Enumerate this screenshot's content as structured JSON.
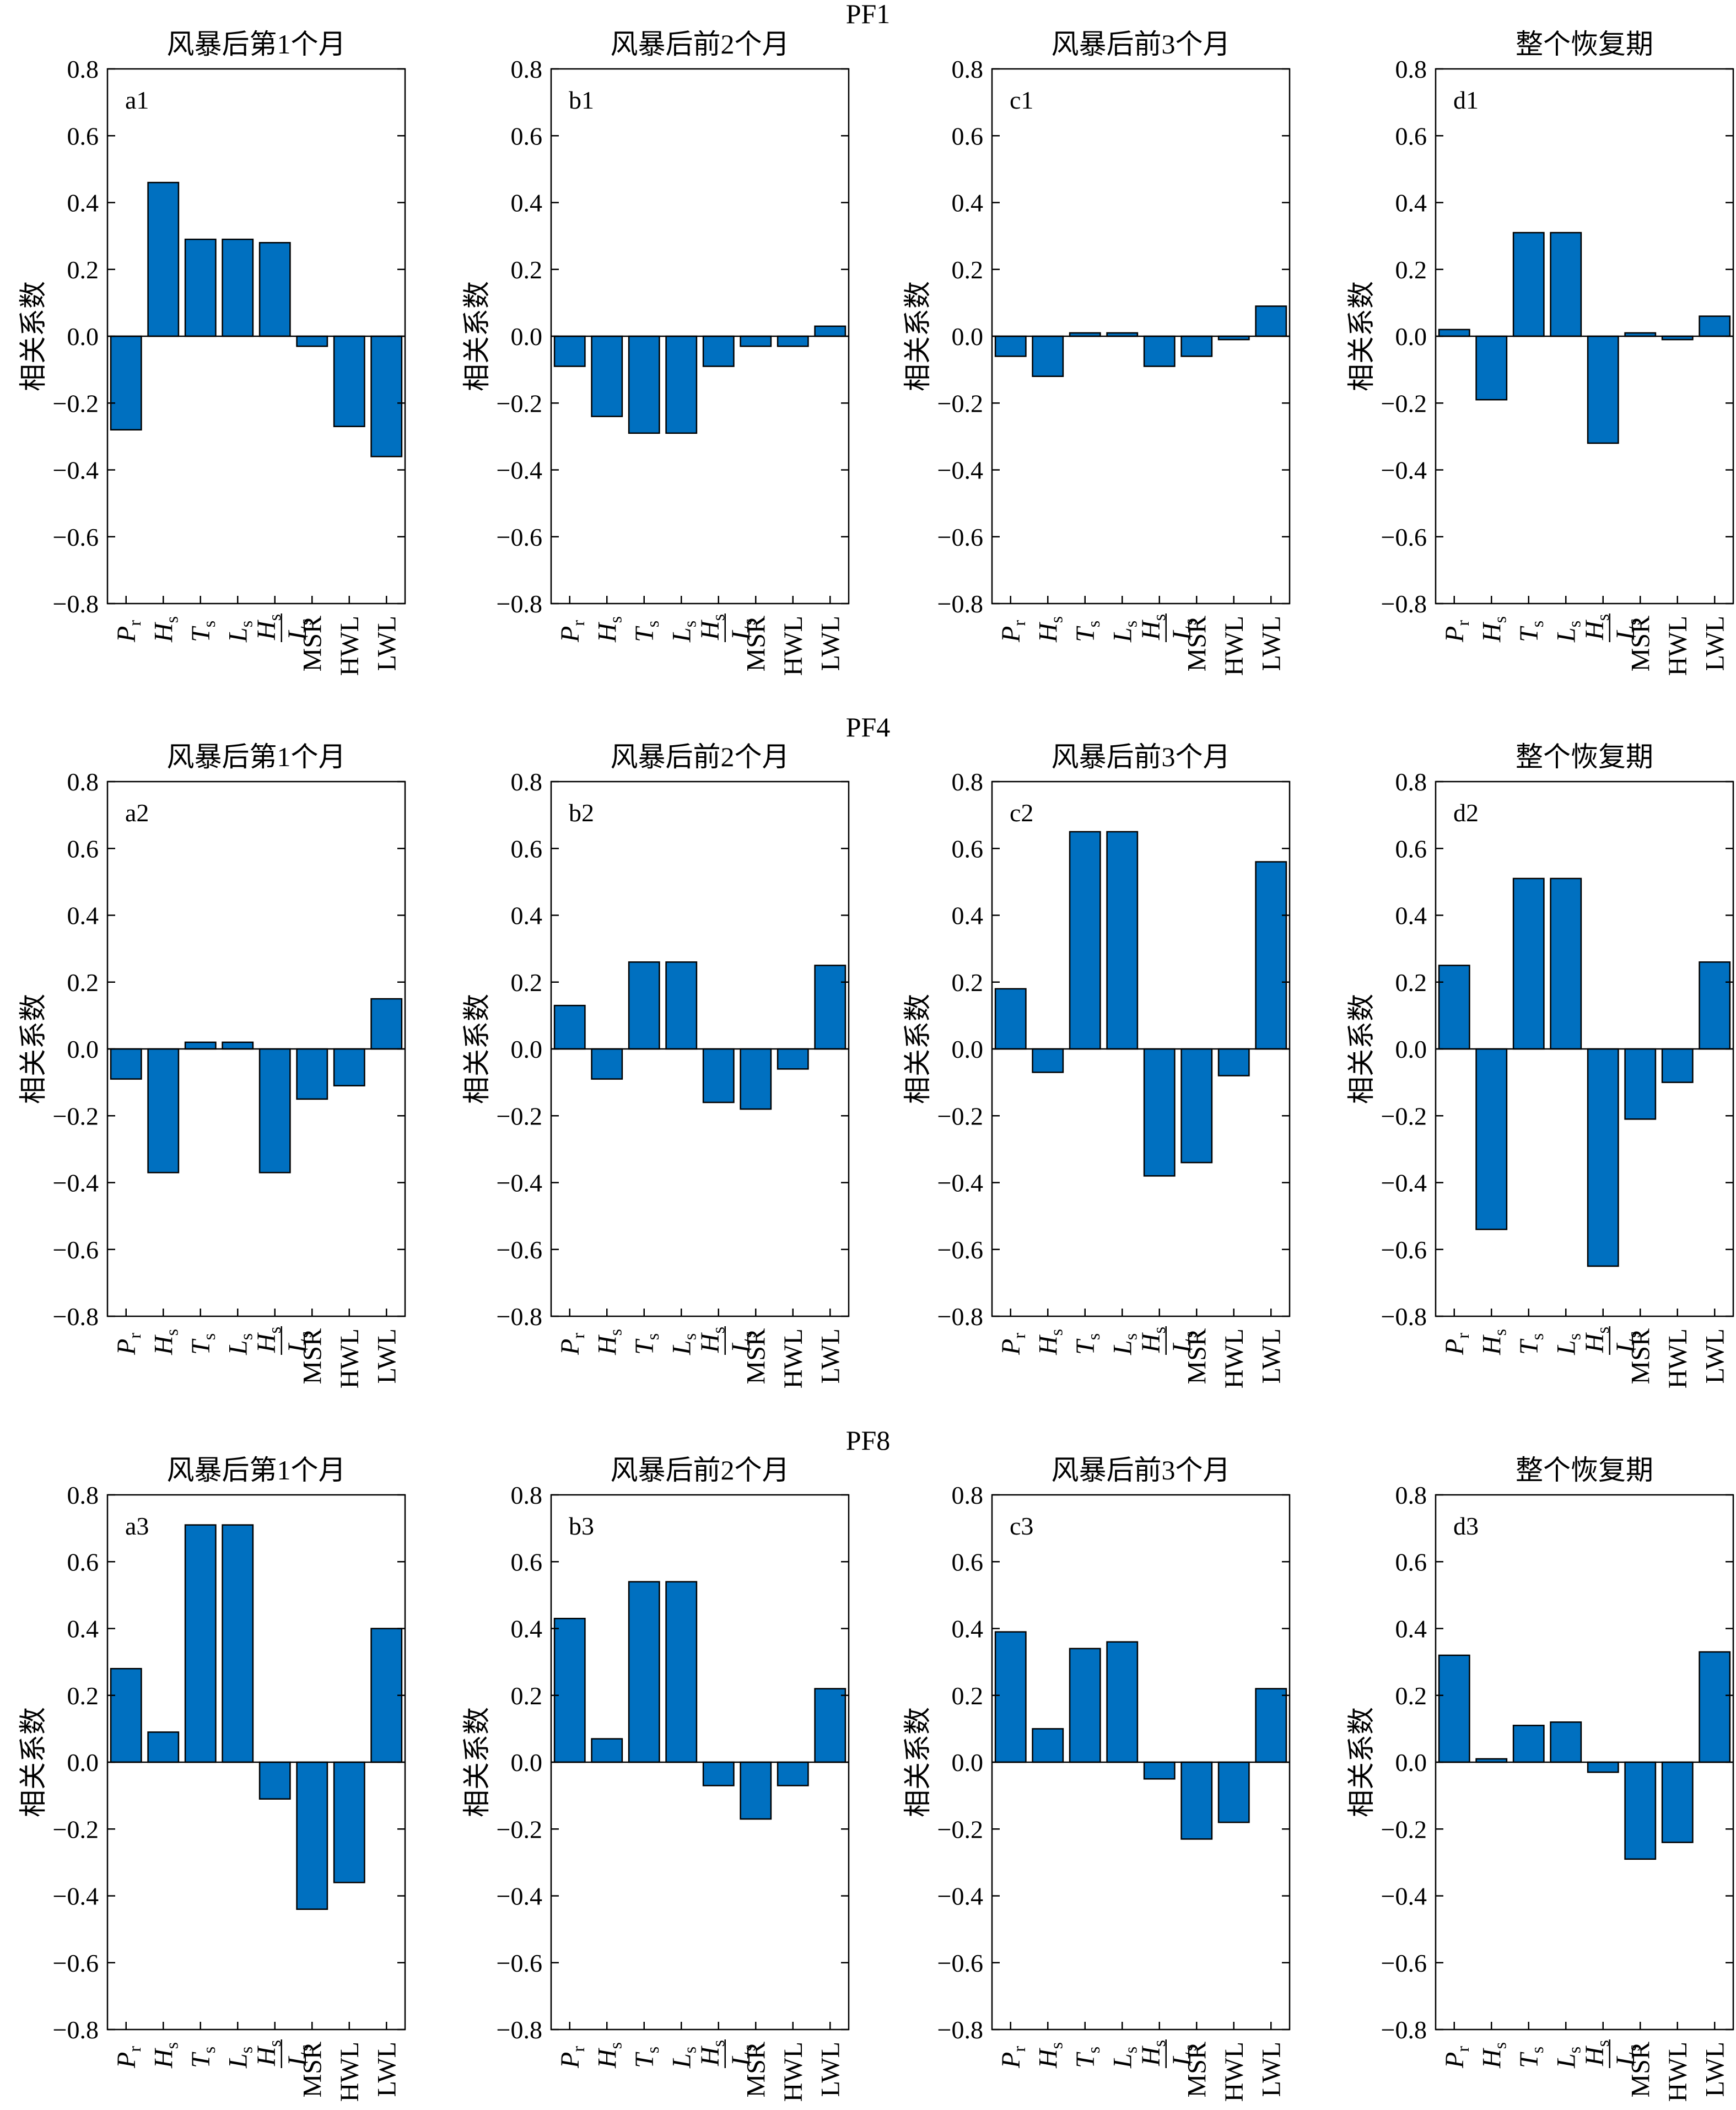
{
  "figure": {
    "ylabel": "相关系数",
    "rows": [
      {
        "title": "PF1"
      },
      {
        "title": "PF4"
      },
      {
        "title": "PF8"
      }
    ],
    "columns": [
      {
        "title": "风暴后第1个月"
      },
      {
        "title": "风暴后前2个月"
      },
      {
        "title": "风暴后前3个月"
      },
      {
        "title": "整个恢复期"
      }
    ],
    "bar_color": "#0070C0",
    "bar_edge_color": "#000000"
  },
  "chart_data": [
    {
      "type": "bar",
      "panel_label": "a1",
      "title": "风暴后第1个月",
      "group": "PF1",
      "ylabel": "相关系数",
      "ylim": [
        -0.8,
        0.8
      ],
      "yticks": [
        "−0.8",
        "−0.6",
        "−0.4",
        "−0.2",
        "0.0",
        "0.2",
        "0.4",
        "0.6",
        "0.8"
      ],
      "categories": [
        "Pr",
        "Hs",
        "Ts",
        "Ls",
        "Hs/Ls",
        "MSR",
        "HWL",
        "LWL"
      ],
      "values": [
        -0.28,
        0.46,
        0.29,
        0.29,
        0.28,
        -0.03,
        -0.27,
        -0.36
      ]
    },
    {
      "type": "bar",
      "panel_label": "b1",
      "title": "风暴后前2个月",
      "group": "PF1",
      "ylabel": "相关系数",
      "ylim": [
        -0.8,
        0.8
      ],
      "yticks": [
        "−0.8",
        "−0.6",
        "−0.4",
        "−0.2",
        "0.0",
        "0.2",
        "0.4",
        "0.6",
        "0.8"
      ],
      "categories": [
        "Pr",
        "Hs",
        "Ts",
        "Ls",
        "Hs/Ls",
        "MSR",
        "HWL",
        "LWL"
      ],
      "values": [
        -0.09,
        -0.24,
        -0.29,
        -0.29,
        -0.09,
        -0.03,
        -0.03,
        0.03
      ]
    },
    {
      "type": "bar",
      "panel_label": "c1",
      "title": "风暴后前3个月",
      "group": "PF1",
      "ylabel": "相关系数",
      "ylim": [
        -0.8,
        0.8
      ],
      "yticks": [
        "−0.8",
        "−0.6",
        "−0.4",
        "−0.2",
        "0.0",
        "0.2",
        "0.4",
        "0.6",
        "0.8"
      ],
      "categories": [
        "Pr",
        "Hs",
        "Ts",
        "Ls",
        "Hs/Ls",
        "MSR",
        "HWL",
        "LWL"
      ],
      "values": [
        -0.06,
        -0.12,
        0.01,
        0.01,
        -0.09,
        -0.06,
        -0.01,
        0.09
      ]
    },
    {
      "type": "bar",
      "panel_label": "d1",
      "title": "整个恢复期",
      "group": "PF1",
      "ylabel": "相关系数",
      "ylim": [
        -0.8,
        0.8
      ],
      "yticks": [
        "−0.8",
        "−0.6",
        "−0.4",
        "−0.2",
        "0.0",
        "0.2",
        "0.4",
        "0.6",
        "0.8"
      ],
      "categories": [
        "Pr",
        "Hs",
        "Ts",
        "Ls",
        "Hs/Ls",
        "MSR",
        "HWL",
        "LWL"
      ],
      "values": [
        0.02,
        -0.19,
        0.31,
        0.31,
        -0.32,
        0.01,
        -0.01,
        0.06
      ]
    },
    {
      "type": "bar",
      "panel_label": "a2",
      "title": "风暴后第1个月",
      "group": "PF4",
      "ylabel": "相关系数",
      "ylim": [
        -0.8,
        0.8
      ],
      "yticks": [
        "−0.8",
        "−0.6",
        "−0.4",
        "−0.2",
        "0.0",
        "0.2",
        "0.4",
        "0.6",
        "0.8"
      ],
      "categories": [
        "Pr",
        "Hs",
        "Ts",
        "Ls",
        "Hs/Ls",
        "MSR",
        "HWL",
        "LWL"
      ],
      "values": [
        -0.09,
        -0.37,
        0.02,
        0.02,
        -0.37,
        -0.15,
        -0.11,
        0.15
      ]
    },
    {
      "type": "bar",
      "panel_label": "b2",
      "title": "风暴后前2个月",
      "group": "PF4",
      "ylabel": "相关系数",
      "ylim": [
        -0.8,
        0.8
      ],
      "yticks": [
        "−0.8",
        "−0.6",
        "−0.4",
        "−0.2",
        "0.0",
        "0.2",
        "0.4",
        "0.6",
        "0.8"
      ],
      "categories": [
        "Pr",
        "Hs",
        "Ts",
        "Ls",
        "Hs/Ls",
        "MSR",
        "HWL",
        "LWL"
      ],
      "values": [
        0.13,
        -0.09,
        0.26,
        0.26,
        -0.16,
        -0.18,
        -0.06,
        0.25
      ]
    },
    {
      "type": "bar",
      "panel_label": "c2",
      "title": "风暴后前3个月",
      "group": "PF4",
      "ylabel": "相关系数",
      "ylim": [
        -0.8,
        0.8
      ],
      "yticks": [
        "−0.8",
        "−0.6",
        "−0.4",
        "−0.2",
        "0.0",
        "0.2",
        "0.4",
        "0.6",
        "0.8"
      ],
      "categories": [
        "Pr",
        "Hs",
        "Ts",
        "Ls",
        "Hs/Ls",
        "MSR",
        "HWL",
        "LWL"
      ],
      "values": [
        0.18,
        -0.07,
        0.65,
        0.65,
        -0.38,
        -0.34,
        -0.08,
        0.56
      ]
    },
    {
      "type": "bar",
      "panel_label": "d2",
      "title": "整个恢复期",
      "group": "PF4",
      "ylabel": "相关系数",
      "ylim": [
        -0.8,
        0.8
      ],
      "yticks": [
        "−0.8",
        "−0.6",
        "−0.4",
        "−0.2",
        "0.0",
        "0.2",
        "0.4",
        "0.6",
        "0.8"
      ],
      "categories": [
        "Pr",
        "Hs",
        "Ts",
        "Ls",
        "Hs/Ls",
        "MSR",
        "HWL",
        "LWL"
      ],
      "values": [
        0.25,
        -0.54,
        0.51,
        0.51,
        -0.65,
        -0.21,
        -0.1,
        0.26
      ]
    },
    {
      "type": "bar",
      "panel_label": "a3",
      "title": "风暴后第1个月",
      "group": "PF8",
      "ylabel": "相关系数",
      "ylim": [
        -0.8,
        0.8
      ],
      "yticks": [
        "−0.8",
        "−0.6",
        "−0.4",
        "−0.2",
        "0.0",
        "0.2",
        "0.4",
        "0.6",
        "0.8"
      ],
      "categories": [
        "Pr",
        "Hs",
        "Ts",
        "Ls",
        "Hs/Ls",
        "MSR",
        "HWL",
        "LWL"
      ],
      "values": [
        0.28,
        0.09,
        0.71,
        0.71,
        -0.11,
        -0.44,
        -0.36,
        0.4
      ]
    },
    {
      "type": "bar",
      "panel_label": "b3",
      "title": "风暴后前2个月",
      "group": "PF8",
      "ylabel": "相关系数",
      "ylim": [
        -0.8,
        0.8
      ],
      "yticks": [
        "−0.8",
        "−0.6",
        "−0.4",
        "−0.2",
        "0.0",
        "0.2",
        "0.4",
        "0.6",
        "0.8"
      ],
      "categories": [
        "Pr",
        "Hs",
        "Ts",
        "Ls",
        "Hs/Ls",
        "MSR",
        "HWL",
        "LWL"
      ],
      "values": [
        0.43,
        0.07,
        0.54,
        0.54,
        -0.07,
        -0.17,
        -0.07,
        0.22
      ]
    },
    {
      "type": "bar",
      "panel_label": "c3",
      "title": "风暴后前3个月",
      "group": "PF8",
      "ylabel": "相关系数",
      "ylim": [
        -0.8,
        0.8
      ],
      "yticks": [
        "−0.8",
        "−0.6",
        "−0.4",
        "−0.2",
        "0.0",
        "0.2",
        "0.4",
        "0.6",
        "0.8"
      ],
      "categories": [
        "Pr",
        "Hs",
        "Ts",
        "Ls",
        "Hs/Ls",
        "MSR",
        "HWL",
        "LWL"
      ],
      "values": [
        0.39,
        0.1,
        0.34,
        0.36,
        -0.05,
        -0.23,
        -0.18,
        0.22
      ]
    },
    {
      "type": "bar",
      "panel_label": "d3",
      "title": "整个恢复期",
      "group": "PF8",
      "ylabel": "相关系数",
      "ylim": [
        -0.8,
        0.8
      ],
      "yticks": [
        "−0.8",
        "−0.6",
        "−0.4",
        "−0.2",
        "0.0",
        "0.2",
        "0.4",
        "0.6",
        "0.8"
      ],
      "categories": [
        "Pr",
        "Hs",
        "Ts",
        "Ls",
        "Hs/Ls",
        "MSR",
        "HWL",
        "LWL"
      ],
      "values": [
        0.32,
        0.01,
        0.11,
        0.12,
        -0.03,
        -0.29,
        -0.24,
        0.33
      ]
    }
  ]
}
